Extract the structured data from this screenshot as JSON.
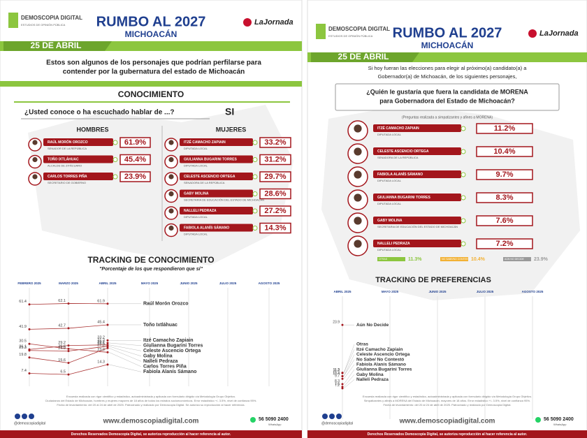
{
  "left": {
    "brand": "DEMOSCOPIA DIGITAL",
    "brand_sub": "ESTUDIOS DE OPINIÓN PÚBLICA",
    "title": "RUMBO AL 2027",
    "subtitle": "MICHOACÁN",
    "partner": "LaJornada",
    "date": "25 DE ABRIL",
    "intro": [
      "Estos son algunos de los personajes que podrían perfilarse para",
      "contender por la gubernatura del estado de Michoacán"
    ],
    "section": "CONOCIMIENTO",
    "question": "¿Usted conoce o ha escuchado hablar de ...?",
    "answer": "SI",
    "groups": [
      {
        "label": "HOMBRES",
        "people": [
          {
            "name": "RAÚL MORÓN OROZCO",
            "role": "SENADOR DE LA REPÚBLICA",
            "value": "61.9%"
          },
          {
            "name": "TOÑO IXTLÁHUAC",
            "role": "ALCALDE DE ZITÁCUARO",
            "value": "45.4%"
          },
          {
            "name": "CARLOS TORRES PIÑA",
            "role": "SECRETARIO DE GOBIERNO",
            "value": "23.9%"
          }
        ]
      },
      {
        "label": "MUJERES",
        "people": [
          {
            "name": "ITZÉ CAMACHO ZAPIAIN",
            "role": "DIPUTADA LOCAL",
            "value": "33.2%"
          },
          {
            "name": "GIULIANNA BUGARINI TORRES",
            "role": "DIPUTADA LOCAL",
            "value": "31.2%"
          },
          {
            "name": "CELESTE ASCENCIO ORTEGA",
            "role": "SENADORA DE LA REPÚBLICA",
            "value": "29.7%"
          },
          {
            "name": "GABY MOLINA",
            "role": "SECRETARIA DE EDUCACIÓN DEL ESTADO DE MICHOACÁN",
            "value": "28.6%"
          },
          {
            "name": "NALLELI PEDRAZA",
            "role": "DIPUTADA LOCAL",
            "value": "27.2%"
          },
          {
            "name": "FABIOLA ALANÍS SÁMANO",
            "role": "DIPUTADA LOCAL",
            "value": "14.3%"
          }
        ]
      }
    ],
    "tracking": {
      "title": "TRACKING DE CONOCIMIENTO",
      "subtitle": "\"Porcentaje de los que respondieron que sí\"",
      "months": [
        "FEBRERO 2025",
        "MARZO 2025",
        "ABRIL 2025",
        "MAYO 2025",
        "JUNIO 2025",
        "JULIO 2025",
        "AGOSTO 2025"
      ],
      "ylim": [
        0,
        70
      ],
      "series": [
        {
          "name": "Raúl Morón Orozco",
          "values": [
            61.4,
            62.1,
            61.9,
            null,
            null,
            null,
            null
          ]
        },
        {
          "name": "Toño Ixtláhuac",
          "values": [
            41.9,
            42.7,
            45.4,
            null,
            null,
            null,
            null
          ]
        },
        {
          "name": "Itzé Camacho Zapiain",
          "values": [
            null,
            null,
            33.2,
            null,
            null,
            null,
            null
          ]
        },
        {
          "name": "Giulianna Bugarini Torres",
          "values": [
            null,
            null,
            31.2,
            null,
            null,
            null,
            null
          ]
        },
        {
          "name": "Celeste Ascencio Ortega",
          "values": [
            26.1,
            29.2,
            29.7,
            null,
            null,
            null,
            null
          ]
        },
        {
          "name": "Gaby Molina",
          "values": [
            25.3,
            24.9,
            28.6,
            null,
            null,
            null,
            null
          ]
        },
        {
          "name": "Nalleli Pedraza",
          "values": [
            19.8,
            15.6,
            27.2,
            null,
            null,
            null,
            null
          ]
        },
        {
          "name": "Carlos Torres Piña",
          "values": [
            30.5,
            26.6,
            23.9,
            null,
            null,
            null,
            null
          ]
        },
        {
          "name": "Fabiola Alanís Sámano",
          "values": [
            7.4,
            6.5,
            14.3,
            null,
            null,
            null,
            null
          ]
        }
      ]
    },
    "footnote": [
      "Encuesta realizada con rigor científico y estadístico, autoadministrada y aplicada con formulario dirigido vía Metodología Grupo Objetivo.",
      "Ciudadanos del Estado de Michoacán, hombres y mujeres mayores de 18 años de todos los estratos socioeconómicos. Error estadístico +/- 3.5%, nivel de confianza 95%.",
      "Fecha de levantamiento: del 20 al 24 de abril de 2025. Patrocinado y realizado por Demoscopia Digital. Se autoriza su reproducción al hacer referencia."
    ],
    "social": "@demoscopiadigital",
    "url": "www.demoscopiadigital.com",
    "phone": "56 5090 2400",
    "whatsapp": "WhatsApp",
    "rights": "Derechos Reservados Demoscopia Digital, se autoriza reproducción al hacer referencia al autor."
  },
  "right": {
    "brand": "DEMOSCOPIA DIGITAL",
    "brand_sub": "ESTUDIOS DE OPINIÓN PÚBLICA",
    "title": "RUMBO AL 2027",
    "subtitle": "MICHOACÁN",
    "partner": "LaJornada",
    "date": "25 DE ABRIL",
    "intro": [
      "Si hoy fueran las elecciones para elegir al próximo(a) candidato(a) a",
      "Gobernador(a) de Michoacán, de los siguientes personajes,"
    ],
    "question": [
      "¿Quién le gustaría que fuera la candidata de MORENA",
      "para Gobernadora del Estado de Michoacán?"
    ],
    "note": "(Preguntas realizada a simpatizantes y afines a MORENA)",
    "people": [
      {
        "name": "ITZÉ CAMACHO ZAPIAIN",
        "role": "DIPUTADA LOCAL",
        "value": "11.2%"
      },
      {
        "name": "CELESTE ASCENCIO ORTEGA",
        "role": "SENADORA DE LA REPÚBLICA",
        "value": "10.4%"
      },
      {
        "name": "FABIOLA ALANÍS SÁMANO",
        "role": "DIPUTADA LOCAL",
        "value": "9.7%"
      },
      {
        "name": "GIULIANNA BUGARINI TORRES",
        "role": "DIPUTADA LOCAL",
        "value": "8.3%"
      },
      {
        "name": "GABY MOLINA",
        "role": "SECRETARIA DE EDUCACIÓN DEL ESTADO DE MICHOACÁN",
        "value": "7.6%"
      },
      {
        "name": "NALLELI PEDRAZA",
        "role": "DIPUTADA LOCAL",
        "value": "7.2%"
      }
    ],
    "legend": [
      {
        "label": "OTRAS",
        "value": "11.3%",
        "color": "#8cc63f"
      },
      {
        "label": "NO SABE/NO CONTESTÓ",
        "value": "10.4%",
        "color": "#f2b134"
      },
      {
        "label": "AÚN NO DECIDE",
        "value": "23.9%",
        "color": "#9a9a9a"
      }
    ],
    "tracking": {
      "title": "TRACKING DE PREFERENCIAS",
      "months": [
        "ABRIL 2025",
        "MAYO 2025",
        "JUNIO 2025",
        "JULIO 2025",
        "AGOSTO 2025"
      ],
      "ylim": [
        0,
        30
      ],
      "series": [
        {
          "name": "Aún No Decide",
          "values": [
            23.9,
            null,
            null,
            null,
            null
          ]
        },
        {
          "name": "Otras",
          "values": [
            11.3,
            null,
            null,
            null,
            null
          ]
        },
        {
          "name": "Itzé Camacho Zapiain",
          "values": [
            11.2,
            null,
            null,
            null,
            null
          ]
        },
        {
          "name": "Celeste Ascencio Ortega",
          "values": [
            10.4,
            null,
            null,
            null,
            null
          ]
        },
        {
          "name": "No Sabe/ No Contestó",
          "values": [
            10.4,
            null,
            null,
            null,
            null
          ]
        },
        {
          "name": "Fabiola Alanís Sámano",
          "values": [
            9.7,
            null,
            null,
            null,
            null
          ]
        },
        {
          "name": "Giulianna Bugarini Torres",
          "values": [
            8.3,
            null,
            null,
            null,
            null
          ]
        },
        {
          "name": "Gaby Molina",
          "values": [
            7.6,
            null,
            null,
            null,
            null
          ]
        },
        {
          "name": "Nalleli Pedraza",
          "values": [
            7.2,
            null,
            null,
            null,
            null
          ]
        }
      ]
    },
    "footnote": [
      "Encuesta realizada con rigor científico y estadístico, autoadministrada y aplicada con formulario dirigido vía Metodología Grupo Objetivo.",
      "Simpatizantes y afines a MORENA del Estado de Michoacán, mayores de 18 años. Error estadístico +/- 3.5%, nivel de confianza 95%.",
      "Fecha de levantamiento: del 20 al 24 de abril de 2025. Patrocinado y realizado por Demoscopia Digital."
    ],
    "social": "@demoscopiadigital",
    "url": "www.demoscopiadigital.com",
    "phone": "56 5090 2400",
    "whatsapp": "WhatsApp",
    "rights": "Derechos Reservados Demoscopia Digital, se autoriza reproducción al hacer referencia al autor."
  }
}
